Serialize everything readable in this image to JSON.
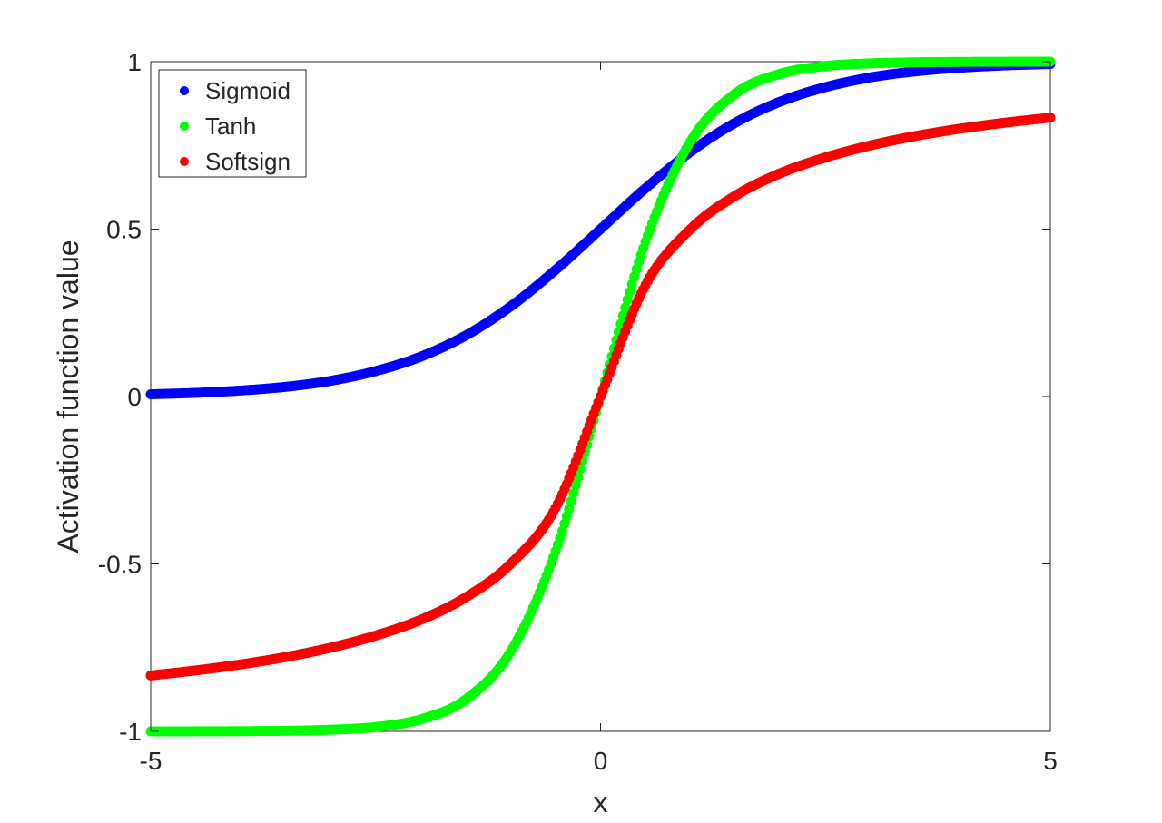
{
  "chart_data": {
    "type": "scatter",
    "title": "",
    "xlabel": "x",
    "ylabel": "Activation function value",
    "xlim": [
      -5,
      5
    ],
    "ylim": [
      -1,
      1
    ],
    "xticks": [
      -5,
      0,
      5
    ],
    "xtick_labels": [
      "-5",
      "0",
      "5"
    ],
    "yticks": [
      -1,
      -0.5,
      0,
      0.5,
      1
    ],
    "ytick_labels": [
      "-1",
      "-0.5",
      "0",
      "0.5",
      "1"
    ],
    "grid": false,
    "legend_position": "top-left",
    "x": [
      -5,
      -4.5,
      -4,
      -3.5,
      -3,
      -2.5,
      -2,
      -1.5,
      -1,
      -0.5,
      0,
      0.5,
      1,
      1.5,
      2,
      2.5,
      3,
      3.5,
      4,
      4.5,
      5
    ],
    "series": [
      {
        "name": "Sigmoid",
        "color": "#0000ff",
        "values": [
          0.0067,
          0.011,
          0.018,
          0.029,
          0.047,
          0.076,
          0.119,
          0.182,
          0.269,
          0.378,
          0.5,
          0.622,
          0.731,
          0.818,
          0.881,
          0.924,
          0.953,
          0.971,
          0.982,
          0.989,
          0.993
        ]
      },
      {
        "name": "Tanh",
        "color": "#00ff00",
        "values": [
          -0.9999,
          -0.9998,
          -0.9993,
          -0.9982,
          -0.995,
          -0.987,
          -0.964,
          -0.905,
          -0.762,
          -0.462,
          0,
          0.462,
          0.762,
          0.905,
          0.964,
          0.987,
          0.995,
          0.9982,
          0.9993,
          0.9998,
          0.9999
        ]
      },
      {
        "name": "Softsign",
        "color": "#ff0000",
        "values": [
          -0.833,
          -0.818,
          -0.8,
          -0.778,
          -0.75,
          -0.714,
          -0.667,
          -0.6,
          -0.5,
          -0.333,
          0,
          0.333,
          0.5,
          0.6,
          0.667,
          0.714,
          0.75,
          0.778,
          0.8,
          0.818,
          0.833
        ]
      }
    ]
  }
}
